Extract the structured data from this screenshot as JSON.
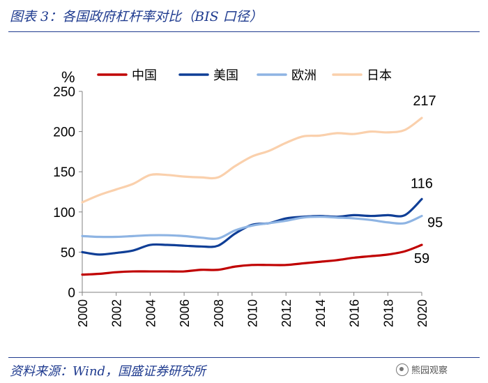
{
  "figure": {
    "title": "图表 3：各国政府杠杆率对比（BIS 口径）",
    "source": "资料来源：Wind，国盛证券研究所",
    "watermark": "熊园观察"
  },
  "chart_data": {
    "type": "line",
    "title": "图表 3：各国政府杠杆率对比（BIS 口径）",
    "ylabel": "%",
    "xlabel": "",
    "ylim": [
      0,
      250
    ],
    "yticks": [
      0,
      50,
      100,
      150,
      200,
      250
    ],
    "xlim": [
      2000,
      2020
    ],
    "xticks": [
      2000,
      2002,
      2004,
      2006,
      2008,
      2010,
      2012,
      2014,
      2016,
      2018,
      2020
    ],
    "grid": false,
    "legend_position": "top",
    "series": [
      {
        "name": "中国",
        "color": "#c00000",
        "x": [
          2000,
          2001,
          2002,
          2003,
          2004,
          2005,
          2006,
          2007,
          2008,
          2009,
          2010,
          2011,
          2012,
          2013,
          2014,
          2015,
          2016,
          2017,
          2018,
          2019,
          2020
        ],
        "values": [
          22,
          23,
          25,
          26,
          26,
          26,
          26,
          28,
          28,
          32,
          34,
          34,
          34,
          36,
          38,
          40,
          43,
          45,
          47,
          51,
          59
        ],
        "end_label": "59"
      },
      {
        "name": "美国",
        "color": "#0f3e96",
        "x": [
          2000,
          2001,
          2002,
          2003,
          2004,
          2005,
          2006,
          2007,
          2008,
          2009,
          2010,
          2011,
          2012,
          2013,
          2014,
          2015,
          2016,
          2017,
          2018,
          2019,
          2020
        ],
        "values": [
          50,
          47,
          49,
          52,
          59,
          59,
          58,
          57,
          58,
          73,
          84,
          86,
          92,
          94,
          95,
          94,
          96,
          95,
          96,
          96,
          116
        ],
        "end_label": "116"
      },
      {
        "name": "欧洲",
        "color": "#8eb4e3",
        "x": [
          2000,
          2001,
          2002,
          2003,
          2004,
          2005,
          2006,
          2007,
          2008,
          2009,
          2010,
          2011,
          2012,
          2013,
          2014,
          2015,
          2016,
          2017,
          2018,
          2019,
          2020
        ],
        "values": [
          70,
          69,
          69,
          70,
          71,
          71,
          70,
          68,
          67,
          77,
          83,
          86,
          89,
          93,
          94,
          93,
          92,
          90,
          87,
          86,
          95
        ],
        "end_label": "95"
      },
      {
        "name": "日本",
        "color": "#fad0ac",
        "x": [
          2000,
          2001,
          2002,
          2003,
          2004,
          2005,
          2006,
          2007,
          2008,
          2009,
          2010,
          2011,
          2012,
          2013,
          2014,
          2015,
          2016,
          2017,
          2018,
          2019,
          2020
        ],
        "values": [
          112,
          121,
          128,
          135,
          146,
          146,
          144,
          143,
          143,
          157,
          169,
          176,
          186,
          194,
          195,
          198,
          197,
          200,
          199,
          202,
          217
        ],
        "end_label": "217"
      }
    ]
  }
}
